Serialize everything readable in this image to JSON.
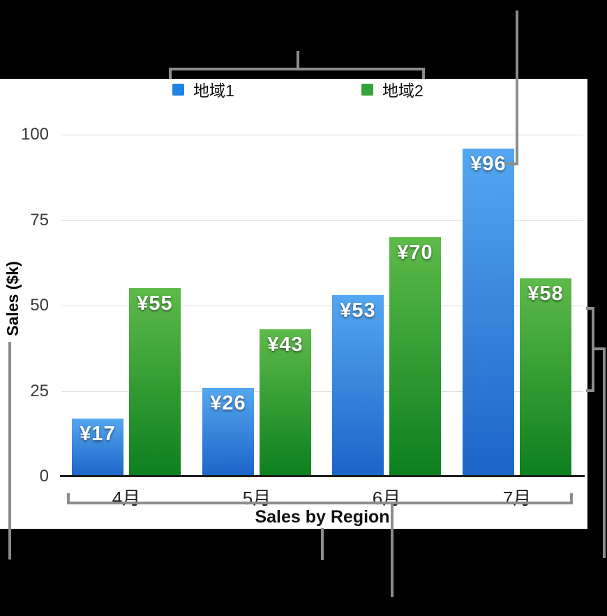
{
  "colors": {
    "background": "#000000",
    "panel": "#ffffff",
    "callout_line": "#8c8c8c",
    "gridline": "#d9d9d9",
    "axis_line": "#1c1c1c",
    "tick_text": "#3a3a3a",
    "category_text": "#1f1f1f",
    "title_text": "#111111",
    "value_label_text": "#ffffff"
  },
  "chart_data": {
    "type": "bar",
    "title": "",
    "xlabel": "Sales by Region",
    "ylabel": "Sales ($k)",
    "categories": [
      "4月",
      "5月",
      "6月",
      "7月"
    ],
    "series": [
      {
        "name": "地域1",
        "color": "#2082e2",
        "gradient_top": "#54a7f0",
        "gradient_bottom": "#1c64c8",
        "values": [
          17,
          26,
          53,
          96
        ],
        "data_labels": [
          "¥17",
          "¥26",
          "¥53",
          "¥96"
        ]
      },
      {
        "name": "地域2",
        "color": "#35a339",
        "gradient_top": "#5dbb49",
        "gradient_bottom": "#0c7f1e",
        "values": [
          55,
          43,
          70,
          58
        ],
        "data_labels": [
          "¥55",
          "¥43",
          "¥70",
          "¥58"
        ]
      }
    ],
    "y_ticks": [
      "0",
      "25",
      "50",
      "75",
      "100"
    ],
    "ylim": [
      0,
      100
    ],
    "grid": true,
    "legend_position": "top"
  }
}
